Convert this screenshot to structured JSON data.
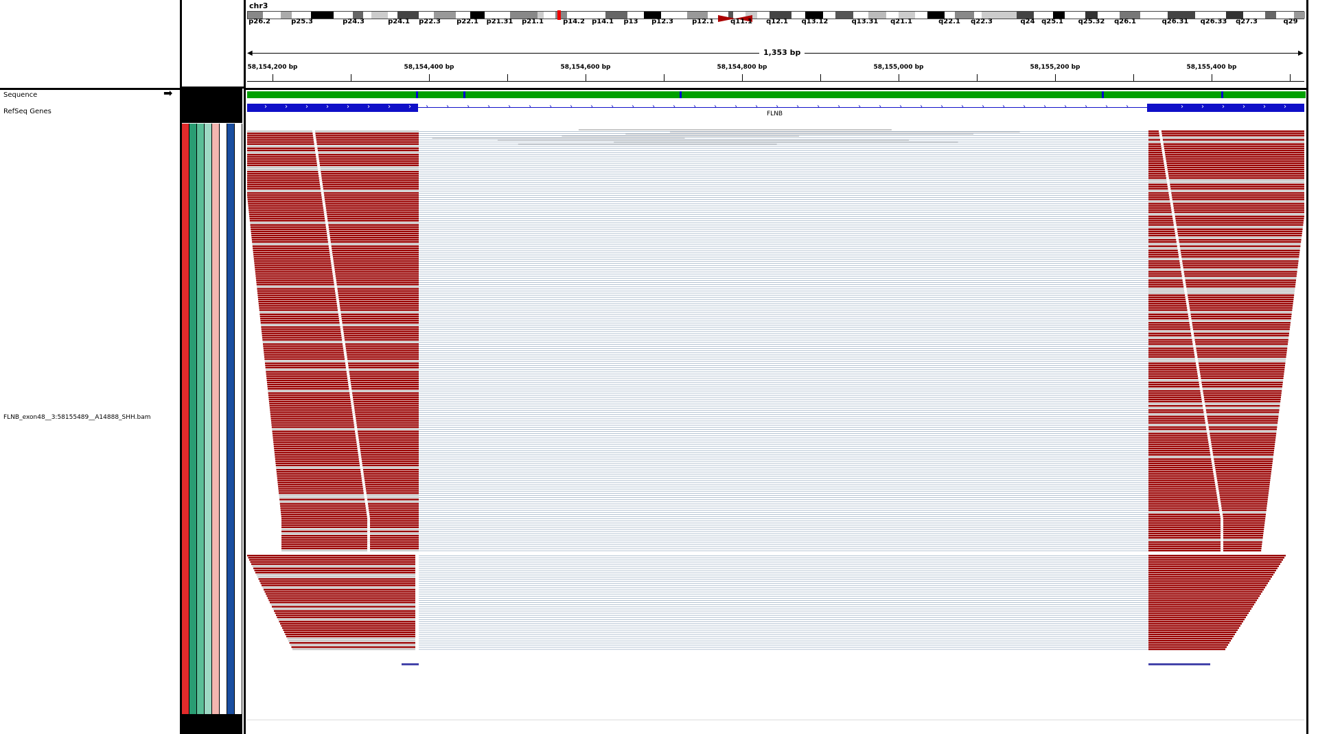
{
  "header": {
    "chromosome": "chr3",
    "span_label": "1,353 bp",
    "cytobands": [
      "p26.2",
      "p25.3",
      "p24.3",
      "p24.1",
      "p22.3",
      "p22.1",
      "p21.31",
      "p21.1",
      "p14.2",
      "p14.1",
      "p13",
      "p12.3",
      "p12.1",
      "q11.1",
      "q12.1",
      "q13.12",
      "q13.31",
      "q21.1",
      "q22.1",
      "q22.3",
      "q24",
      "q25.1",
      "q25.32",
      "q26.1",
      "q26.31",
      "q26.33",
      "q27.3",
      "q29"
    ],
    "ruler_ticks": [
      "58,154,200 bp",
      "58,154,400 bp",
      "58,154,600 bp",
      "58,154,800 bp",
      "58,155,000 bp",
      "58,155,200 bp",
      "58,155,400 bp"
    ]
  },
  "tracks": {
    "sequence_label": "Sequence",
    "refseq_label": "RefSeq Genes",
    "gene_name": "FLNB",
    "bam_label": "FLNB_exon48__3:58155489__A14888_SHH.bam"
  },
  "icons": {
    "sequence_strand": "right-arrow-icon"
  },
  "colors": {
    "mismatch_read": "#990000",
    "matched_read": "#c8c8c8",
    "junction": "#a3b5c8",
    "gene": "#1010c8",
    "attr_columns": [
      "#e22b2b",
      "#2a9d73",
      "#5bbf98",
      "#9dd9c4",
      "#f4b6b0",
      "#ffffff",
      "#1a4ea0",
      "#ffffff"
    ]
  }
}
